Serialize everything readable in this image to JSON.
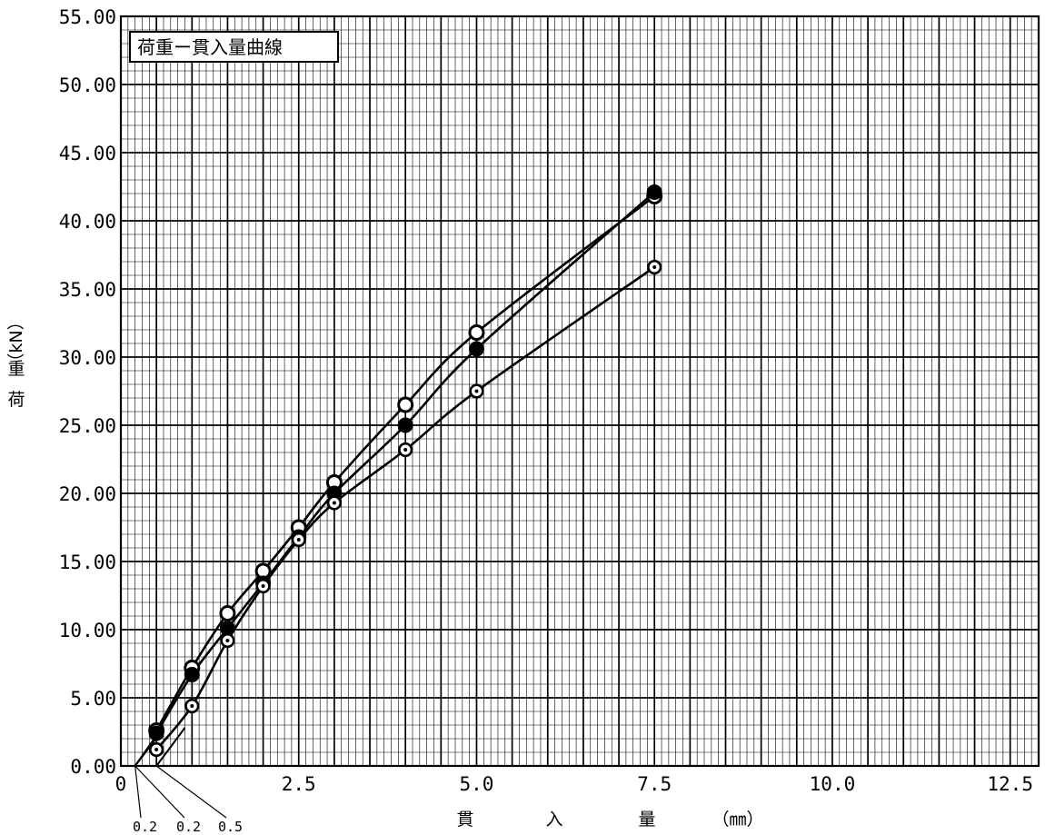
{
  "chart_data": {
    "type": "line",
    "title": "荷重ー貫入量曲線",
    "xlabel": "貫　　入　　量　　　（㎜）",
    "xlabel_parts": [
      "貫",
      "入",
      "量",
      "（㎜）"
    ],
    "ylabel": "荷　重（kN）",
    "ylabel_chars": [
      "荷",
      "重",
      "（kN）"
    ],
    "xlim": [
      0,
      12.9
    ],
    "ylim": [
      0,
      55
    ],
    "x_ticks": [
      0,
      2.5,
      5.0,
      7.5,
      10.0,
      12.5
    ],
    "x_tick_labels": [
      "0",
      "2.5",
      "5.0",
      "7.5",
      "10.0",
      "12.5"
    ],
    "y_ticks": [
      0,
      5,
      10,
      15,
      20,
      25,
      30,
      35,
      40,
      45,
      50,
      55
    ],
    "y_tick_labels": [
      "0.00",
      "5.00",
      "10.00",
      "15.00",
      "20.00",
      "25.00",
      "30.00",
      "35.00",
      "40.00",
      "45.00",
      "50.00",
      "55.00"
    ],
    "grid": true,
    "series": [
      {
        "marker": "open-circle",
        "x": [
          0.5,
          1.0,
          1.5,
          2.0,
          2.5,
          3.0,
          4.0,
          5.0,
          7.5
        ],
        "y": [
          2.6,
          7.2,
          11.2,
          14.3,
          17.5,
          20.8,
          26.5,
          31.8,
          41.8
        ]
      },
      {
        "marker": "filled-circle",
        "x": [
          0.5,
          1.0,
          1.5,
          2.0,
          2.5,
          3.0,
          4.0,
          5.0,
          7.5
        ],
        "y": [
          2.4,
          6.7,
          10.1,
          13.4,
          16.8,
          20.0,
          25.0,
          30.6,
          42.1
        ]
      },
      {
        "marker": "dotted-circle",
        "x": [
          0.5,
          1.0,
          1.5,
          2.0,
          2.5,
          3.0,
          4.0,
          5.0,
          7.5
        ],
        "y": [
          1.2,
          4.4,
          9.2,
          13.2,
          16.6,
          19.3,
          23.2,
          27.5,
          36.6
        ]
      }
    ],
    "corrections": [
      {
        "label": "0.2",
        "x0": 0.2,
        "x_end": 0.55,
        "y_end": 2.4
      },
      {
        "label": "0.2",
        "x0": 0.2,
        "x_end": 0.55,
        "y_end": 2.6
      },
      {
        "label": "0.5",
        "x0": 0.5,
        "x_end": 0.9,
        "y_end": 2.8
      }
    ]
  }
}
